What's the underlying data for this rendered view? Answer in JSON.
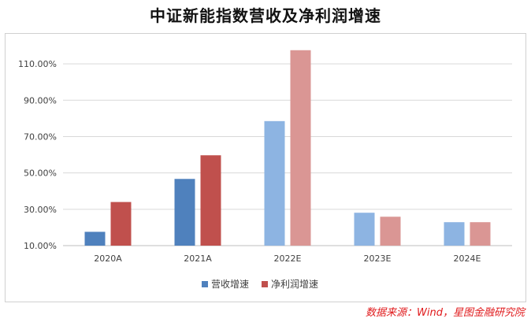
{
  "chart_data": {
    "type": "bar",
    "title": "中证新能指数营收及净利润增速",
    "categories": [
      "2020A",
      "2021A",
      "2022E",
      "2023E",
      "2024E"
    ],
    "series": [
      {
        "name": "营收增速",
        "values": [
          17.6,
          46.7,
          78.5,
          28.1,
          22.9
        ],
        "colors": [
          "#4f81bd",
          "#4f81bd",
          "#8db4e2",
          "#8db4e2",
          "#8db4e2"
        ]
      },
      {
        "name": "净利润增速",
        "values": [
          34.0,
          59.7,
          117.5,
          25.9,
          22.9
        ],
        "colors": [
          "#c0504d",
          "#c0504d",
          "#da9694",
          "#da9694",
          "#da9694"
        ]
      }
    ],
    "yticks": [
      "10.00%",
      "30.00%",
      "50.00%",
      "70.00%",
      "90.00%",
      "110.00%"
    ],
    "ylim": [
      10,
      120
    ],
    "grid": true,
    "legend": "bottom",
    "legend_colors": [
      "#4f81bd",
      "#c0504d"
    ]
  },
  "source": "数据来源：Wind，星图金融研究院"
}
